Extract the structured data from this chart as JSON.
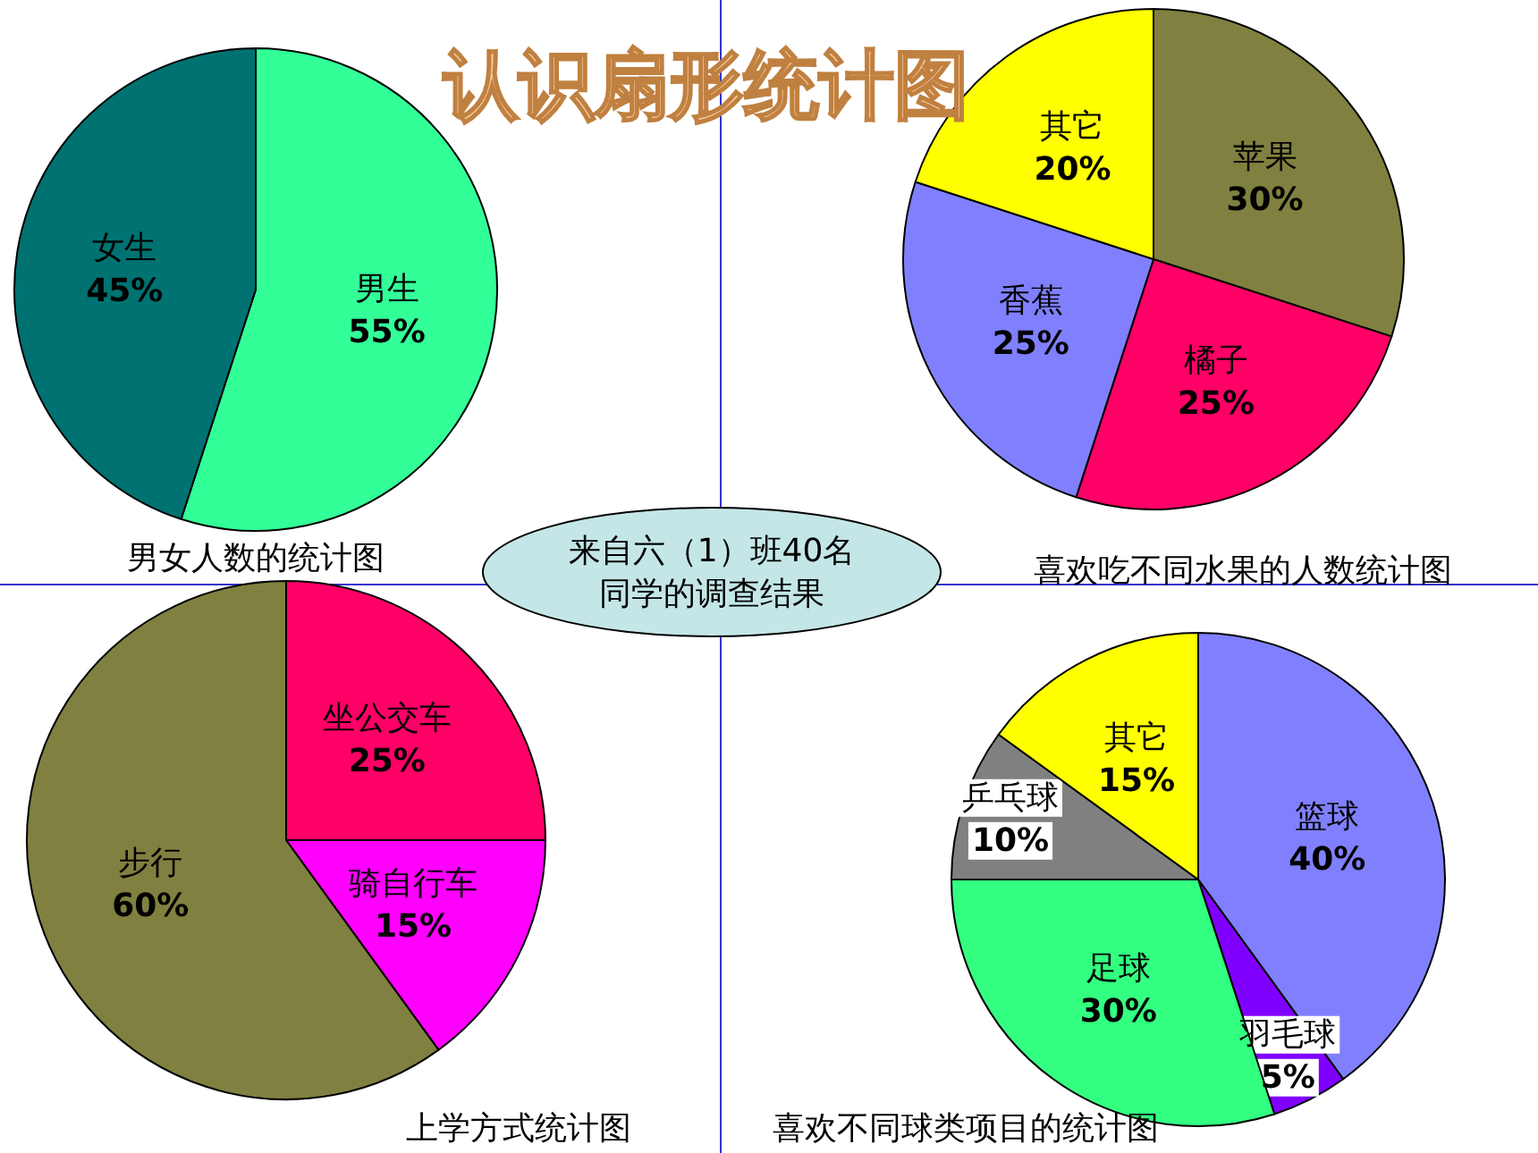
{
  "chart_data": [
    {
      "type": "pie",
      "title": "男女人数的统计图",
      "categories": [
        "男生",
        "女生"
      ],
      "values": [
        55,
        45
      ],
      "colors": [
        "#33ff99",
        "#007272"
      ],
      "value_labels": [
        "55%",
        "45%"
      ],
      "data_labels": true
    },
    {
      "type": "pie",
      "title": "喜欢吃不同水果的人数统计图",
      "categories": [
        "苹果",
        "橘子",
        "香蕉",
        "其它"
      ],
      "values": [
        30,
        25,
        25,
        20
      ],
      "colors": [
        "#808040",
        "#ff0066",
        "#8080ff",
        "#ffff00"
      ],
      "value_labels": [
        "30%",
        "25%",
        "25%",
        "20%"
      ],
      "data_labels": true
    },
    {
      "type": "pie",
      "title": "上学方式统计图",
      "categories": [
        "坐公交车",
        "骑自行车",
        "步行"
      ],
      "values": [
        25,
        15,
        60
      ],
      "colors": [
        "#ff0066",
        "#ff00ff",
        "#808040"
      ],
      "value_labels": [
        "25%",
        "15%",
        "60%"
      ],
      "data_labels": true
    },
    {
      "type": "pie",
      "title": "喜欢不同球类项目的统计图",
      "categories": [
        "篮球",
        "羽毛球",
        "足球",
        "乒乓球",
        "其它"
      ],
      "values": [
        40,
        5,
        30,
        10,
        15
      ],
      "colors": [
        "#8080ff",
        "#8000ff",
        "#33ff80",
        "#808080",
        "#ffff00"
      ],
      "value_labels": [
        "40%",
        "5%",
        "30%",
        "10%",
        "15%"
      ],
      "data_labels": true
    },
    {
      "type": "other",
      "title": "认识扇形统计图",
      "annotations": [
        "来自六（1）班40名同学的调查结果"
      ]
    }
  ]
}
